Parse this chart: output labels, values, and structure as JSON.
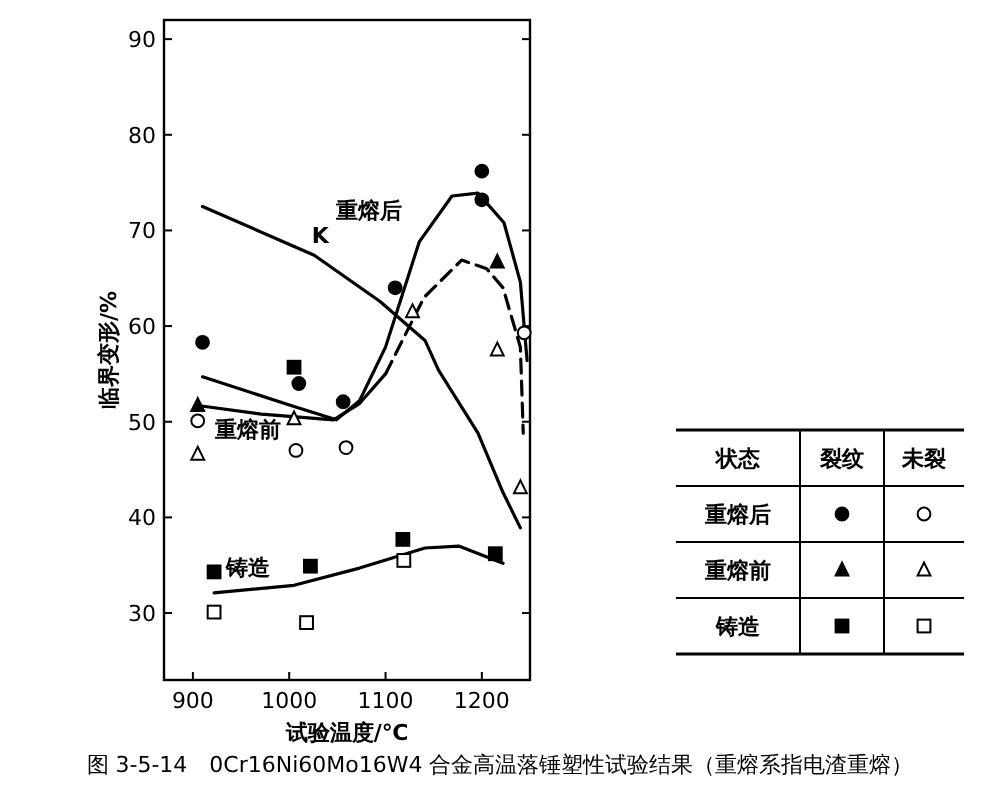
{
  "chart_data": {
    "type": "scatter",
    "title": "图 3-5-14　0Cr16Ni60Mo16W4 合金高温落锤塑性试验结果（重熔系指电渣重熔）",
    "xlabel": "试验温度/℃",
    "ylabel": "临界变形/%",
    "legend_title": "状态",
    "xlim": [
      870,
      1250
    ],
    "ylim": [
      23,
      92
    ],
    "xticks": [
      900,
      1000,
      1100,
      1200
    ],
    "yticks": [
      30,
      40,
      50,
      60,
      70,
      80,
      90
    ],
    "grid": false,
    "annotations": [
      "裂纹",
      "未裂",
      "重熔后",
      "重熔前",
      "铸造"
    ],
    "series": [
      {
        "marker": "circle",
        "color": "#000000",
        "x": [
          910,
          1010,
          1056,
          1110,
          1200,
          1200
        ],
        "values": [
          58.3,
          54,
          52.1,
          64,
          76.2,
          73.2
        ]
      },
      {
        "marker": "circle",
        "color": "#ffffff",
        "x": [
          905,
          1007,
          1059,
          1244
        ],
        "values": [
          50.1,
          47,
          47.3,
          59.3
        ]
      },
      {
        "marker": "triangle",
        "color": "#000000",
        "x": [
          905,
          1216
        ],
        "values": [
          51.7,
          66.7
        ]
      },
      {
        "marker": "triangle",
        "color": "#ffffff",
        "x": [
          905,
          1005,
          1128,
          1216,
          1240
        ],
        "values": [
          46.6,
          50.3,
          61.5,
          57.5,
          43.1
        ]
      },
      {
        "marker": "square",
        "color": "#000000",
        "x": [
          922,
          1005,
          1022,
          1118,
          1214
        ],
        "values": [
          34.3,
          55.7,
          34.9,
          37.7,
          36.2
        ]
      },
      {
        "marker": "square",
        "color": "#ffffff",
        "x": [
          922,
          1018,
          1119
        ],
        "values": [
          30.1,
          29,
          35.5
        ]
      },
      {
        "name": "K",
        "type": "line",
        "line_style": "solid",
        "color": "#000000",
        "x": [
          910,
          1026,
          1094,
          1141,
          1155,
          1196,
          1222,
          1240
        ],
        "values": [
          72.5,
          67.4,
          62.6,
          58.5,
          55.4,
          48.8,
          42.6,
          38.9
        ]
      },
      {
        "name": "重熔后",
        "type": "line",
        "line_style": "solid",
        "color": "#000000",
        "x": [
          910,
          1005,
          1049,
          1073,
          1100,
          1135,
          1169,
          1196,
          1223,
          1240,
          1247
        ],
        "values": [
          54.7,
          51.6,
          50.2,
          52.2,
          57.8,
          68.8,
          73.6,
          73.9,
          70.8,
          64.6,
          56.4
        ]
      },
      {
        "name": "重熔前",
        "type": "line",
        "line_style": "solid",
        "color": "#000000",
        "x": [
          905,
          971,
          1046,
          1073,
          1100
        ],
        "values": [
          51.7,
          50.8,
          50.2,
          51.9,
          55
        ]
      },
      {
        "type": "line",
        "line_style": "dashed",
        "color": "#000000",
        "x": [
          1100,
          1140,
          1179,
          1205,
          1222,
          1240,
          1243
        ],
        "values": [
          55,
          63,
          66.9,
          66,
          64,
          57.8,
          48.8
        ]
      },
      {
        "name": "铸造",
        "type": "line",
        "line_style": "solid",
        "color": "#000000",
        "x": [
          922,
          1005,
          1073,
          1141,
          1176,
          1222
        ],
        "values": [
          32.1,
          32.9,
          34.7,
          36.8,
          37,
          35.2
        ]
      }
    ]
  }
}
